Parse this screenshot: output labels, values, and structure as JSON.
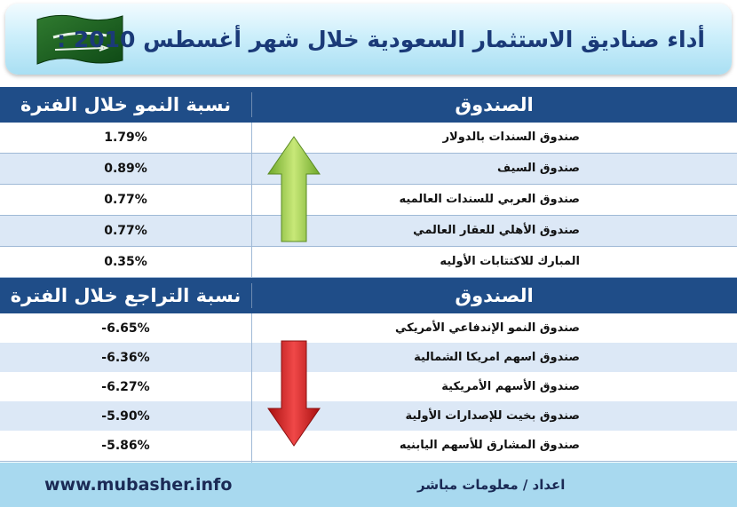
{
  "title": "أداء صناديق الاستثمار السعودية خلال شهر أغسطس 2010 :",
  "flag_text": "لا إله إلا الله محمد رسول الله",
  "growth_header": {
    "fund_label": "الصندوق",
    "value_label": "نسبة النمو خلال الفترة"
  },
  "growth_rows": [
    {
      "fund": "صندوق السندات بالدولار",
      "value": "1.79%"
    },
    {
      "fund": "صندوق السيف",
      "value": "0.89%"
    },
    {
      "fund": "صندوق العربي للسندات العالميه",
      "value": "0.77%"
    },
    {
      "fund": "صندوق الأهلي للعقار العالمي",
      "value": "0.77%"
    },
    {
      "fund": "المبارك للاكتتابات الأوليه",
      "value": "0.35%"
    }
  ],
  "decline_header": {
    "fund_label": "الصندوق",
    "value_label": "نسبة التراجع خلال الفترة"
  },
  "decline_rows": [
    {
      "fund": "صندوق النمو الإندفاعي الأمريكي",
      "value": "-6.65%"
    },
    {
      "fund": "صندوق اسهم امريكا الشمالية",
      "value": "-6.36%"
    },
    {
      "fund": "صندوق الأسهم الأمريكية",
      "value": "-6.27%"
    },
    {
      "fund": "صندوق بخيت للإصدارات الأولية",
      "value": "-5.90%"
    },
    {
      "fund": "صندوق المشارق للأسهم اليابنيه",
      "value": "-5.86%"
    }
  ],
  "footer": {
    "website": "www.mubasher.info",
    "credit": "اعداد / معلومات مباشر"
  },
  "colors": {
    "header_band": "#1f4d88",
    "up_arrow": "#8cc63f",
    "down_arrow": "#d81e1e",
    "footer": "#a8d9ef"
  }
}
